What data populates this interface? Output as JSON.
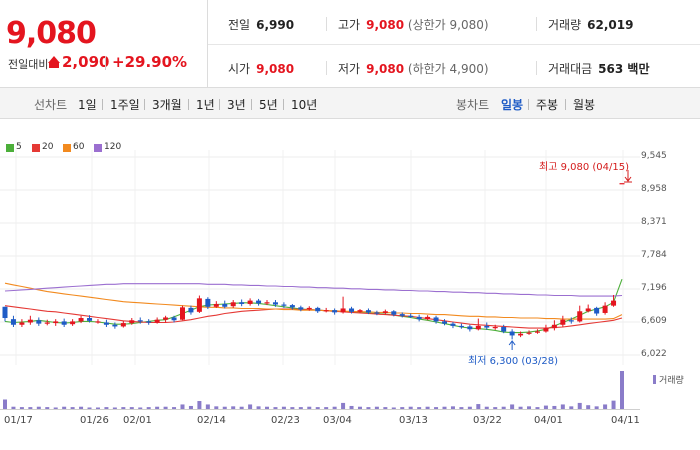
{
  "header": {
    "price": "9,080",
    "change_label": "전일대비",
    "change_value": "2,090",
    "change_pct": "+29.90%",
    "stats": {
      "prev_label": "전일",
      "prev_value": "6,990",
      "high_label": "고가",
      "high_value": "9,080",
      "upper_label": "(상한가 9,080)",
      "volume_label": "거래량",
      "volume_value": "62,019",
      "open_label": "시가",
      "open_value": "9,080",
      "low_label": "저가",
      "low_value": "9,080",
      "lower_label": "(하한가 4,900)",
      "amount_label": "거래대금",
      "amount_value": "563 백만"
    },
    "colors": {
      "up": "#e4151f",
      "down": "#1e5bc6"
    }
  },
  "tabs": {
    "line_label": "선차트",
    "periods": [
      "1일",
      "1주일",
      "3개월",
      "1년",
      "3년",
      "5년",
      "10년"
    ],
    "candle_label": "봉차트",
    "candle_periods": [
      "일봉",
      "주봉",
      "월봉"
    ],
    "active_candle": "일봉"
  },
  "chart_data": {
    "type": "candlestick",
    "legend": [
      {
        "name": "5",
        "color": "#4caf3a"
      },
      {
        "name": "20",
        "color": "#e53935"
      },
      {
        "name": "60",
        "color": "#f28a1f"
      },
      {
        "name": "120",
        "color": "#9b6fd0"
      }
    ],
    "y_ticks": [
      "9,545",
      "8,958",
      "8,371",
      "7,784",
      "7,196",
      "6,609",
      "6,022"
    ],
    "ylim": [
      6022,
      9545
    ],
    "x_ticks": [
      "01/17",
      "01/26",
      "02/01",
      "02/14",
      "02/23",
      "03/04",
      "03/13",
      "03/22",
      "04/01",
      "04/11"
    ],
    "high_annotation": "최고 9,080 (04/15)",
    "low_annotation": "최저 6,300 (03/28)",
    "volume_label": "거래량",
    "candles": [
      [
        6880,
        6680,
        6880,
        6620
      ],
      [
        6660,
        6560,
        6720,
        6520
      ],
      [
        6560,
        6600,
        6660,
        6520
      ],
      [
        6600,
        6650,
        6720,
        6560
      ],
      [
        6640,
        6580,
        6690,
        6540
      ],
      [
        6600,
        6600,
        6650,
        6550
      ],
      [
        6590,
        6620,
        6660,
        6540
      ],
      [
        6620,
        6560,
        6670,
        6520
      ],
      [
        6570,
        6620,
        6660,
        6540
      ],
      [
        6620,
        6680,
        6720,
        6590
      ],
      [
        6680,
        6630,
        6730,
        6600
      ],
      [
        6620,
        6620,
        6660,
        6580
      ],
      [
        6600,
        6560,
        6650,
        6520
      ],
      [
        6560,
        6530,
        6600,
        6490
      ],
      [
        6530,
        6590,
        6630,
        6510
      ],
      [
        6590,
        6640,
        6680,
        6560
      ],
      [
        6640,
        6620,
        6690,
        6580
      ],
      [
        6620,
        6600,
        6660,
        6560
      ],
      [
        6600,
        6650,
        6690,
        6580
      ],
      [
        6650,
        6690,
        6720,
        6600
      ],
      [
        6690,
        6640,
        6720,
        6600
      ],
      [
        6650,
        6870,
        6900,
        6640
      ],
      [
        6860,
        6780,
        6900,
        6740
      ],
      [
        6790,
        7030,
        7080,
        6770
      ],
      [
        7020,
        6880,
        7050,
        6840
      ],
      [
        6880,
        6930,
        6980,
        6860
      ],
      [
        6930,
        6880,
        6990,
        6850
      ],
      [
        6890,
        6960,
        7000,
        6860
      ],
      [
        6960,
        6930,
        7010,
        6890
      ],
      [
        6930,
        6990,
        7030,
        6900
      ],
      [
        6990,
        6940,
        7020,
        6900
      ],
      [
        6950,
        6960,
        7000,
        6910
      ],
      [
        6960,
        6920,
        7000,
        6880
      ],
      [
        6920,
        6900,
        6960,
        6860
      ],
      [
        6910,
        6870,
        6930,
        6830
      ],
      [
        6870,
        6830,
        6900,
        6800
      ],
      [
        6840,
        6860,
        6890,
        6810
      ],
      [
        6860,
        6800,
        6880,
        6770
      ],
      [
        6800,
        6820,
        6860,
        6780
      ],
      [
        6820,
        6780,
        6850,
        6740
      ],
      [
        6780,
        6850,
        7060,
        6760
      ],
      [
        6850,
        6790,
        6880,
        6760
      ],
      [
        6790,
        6820,
        6840,
        6770
      ],
      [
        6820,
        6780,
        6850,
        6750
      ],
      [
        6780,
        6760,
        6810,
        6730
      ],
      [
        6770,
        6800,
        6830,
        6740
      ],
      [
        6800,
        6740,
        6820,
        6710
      ],
      [
        6750,
        6720,
        6780,
        6690
      ],
      [
        6720,
        6700,
        6760,
        6680
      ],
      [
        6700,
        6660,
        6740,
        6620
      ],
      [
        6660,
        6700,
        6730,
        6640
      ],
      [
        6690,
        6620,
        6720,
        6580
      ],
      [
        6620,
        6580,
        6660,
        6550
      ],
      [
        6580,
        6540,
        6610,
        6500
      ],
      [
        6540,
        6530,
        6580,
        6490
      ],
      [
        6530,
        6480,
        6560,
        6440
      ],
      [
        6480,
        6540,
        6670,
        6460
      ],
      [
        6540,
        6510,
        6600,
        6470
      ],
      [
        6510,
        6520,
        6560,
        6470
      ],
      [
        6520,
        6440,
        6560,
        6410
      ],
      [
        6440,
        6370,
        6480,
        6300
      ],
      [
        6370,
        6400,
        6440,
        6340
      ],
      [
        6400,
        6420,
        6460,
        6380
      ],
      [
        6420,
        6440,
        6480,
        6400
      ],
      [
        6440,
        6500,
        6560,
        6420
      ],
      [
        6500,
        6560,
        6640,
        6460
      ],
      [
        6560,
        6650,
        6720,
        6520
      ],
      [
        6640,
        6620,
        6690,
        6580
      ],
      [
        6620,
        6800,
        6900,
        6600
      ],
      [
        6800,
        6850,
        6920,
        6780
      ],
      [
        6860,
        6760,
        6880,
        6720
      ],
      [
        6770,
        6900,
        6960,
        6740
      ],
      [
        6900,
        6990,
        7090,
        6880
      ],
      [
        9080,
        9080,
        9080,
        9080
      ]
    ],
    "volume": [
      [
        0,
        0.25
      ],
      [
        1,
        0.06
      ],
      [
        2,
        0.05
      ],
      [
        3,
        0.05
      ],
      [
        4,
        0.06
      ],
      [
        5,
        0.05
      ],
      [
        6,
        0.04
      ],
      [
        7,
        0.06
      ],
      [
        8,
        0.05
      ],
      [
        9,
        0.06
      ],
      [
        10,
        0.04
      ],
      [
        11,
        0.04
      ],
      [
        12,
        0.05
      ],
      [
        13,
        0.04
      ],
      [
        14,
        0.05
      ],
      [
        15,
        0.05
      ],
      [
        16,
        0.04
      ],
      [
        17,
        0.05
      ],
      [
        18,
        0.06
      ],
      [
        19,
        0.06
      ],
      [
        20,
        0.05
      ],
      [
        21,
        0.12
      ],
      [
        22,
        0.08
      ],
      [
        23,
        0.21
      ],
      [
        24,
        0.12
      ],
      [
        25,
        0.07
      ],
      [
        26,
        0.06
      ],
      [
        27,
        0.07
      ],
      [
        28,
        0.06
      ],
      [
        29,
        0.12
      ],
      [
        30,
        0.07
      ],
      [
        31,
        0.06
      ],
      [
        32,
        0.05
      ],
      [
        33,
        0.06
      ],
      [
        34,
        0.05
      ],
      [
        35,
        0.05
      ],
      [
        36,
        0.06
      ],
      [
        37,
        0.05
      ],
      [
        38,
        0.05
      ],
      [
        39,
        0.06
      ],
      [
        40,
        0.16
      ],
      [
        41,
        0.08
      ],
      [
        42,
        0.06
      ],
      [
        43,
        0.05
      ],
      [
        44,
        0.06
      ],
      [
        45,
        0.05
      ],
      [
        46,
        0.04
      ],
      [
        47,
        0.05
      ],
      [
        48,
        0.06
      ],
      [
        49,
        0.05
      ],
      [
        50,
        0.06
      ],
      [
        51,
        0.05
      ],
      [
        52,
        0.06
      ],
      [
        53,
        0.07
      ],
      [
        54,
        0.05
      ],
      [
        55,
        0.06
      ],
      [
        56,
        0.13
      ],
      [
        57,
        0.06
      ],
      [
        58,
        0.05
      ],
      [
        59,
        0.06
      ],
      [
        60,
        0.12
      ],
      [
        61,
        0.06
      ],
      [
        62,
        0.07
      ],
      [
        63,
        0.05
      ],
      [
        64,
        0.09
      ],
      [
        65,
        0.08
      ],
      [
        66,
        0.12
      ],
      [
        67,
        0.07
      ],
      [
        68,
        0.16
      ],
      [
        69,
        0.1
      ],
      [
        70,
        0.07
      ],
      [
        71,
        0.12
      ],
      [
        72,
        0.22
      ],
      [
        73,
        1.0
      ]
    ],
    "ma": {
      "5": [
        6620,
        6600,
        6610,
        6620,
        6640,
        6620,
        6600,
        6590,
        6600,
        6620,
        6620,
        6610,
        6590,
        6570,
        6570,
        6580,
        6600,
        6620,
        6640,
        6650,
        6700,
        6760,
        6820,
        6880,
        6910,
        6920,
        6930,
        6940,
        6950,
        6950,
        6940,
        6920,
        6900,
        6880,
        6860,
        6840,
        6830,
        6820,
        6810,
        6800,
        6800,
        6790,
        6780,
        6770,
        6760,
        6750,
        6730,
        6710,
        6690,
        6660,
        6640,
        6610,
        6580,
        6550,
        6520,
        6500,
        6490,
        6480,
        6460,
        6430,
        6420,
        6420,
        6430,
        6450,
        6480,
        6540,
        6600,
        6660,
        6730,
        6800,
        6840,
        6880,
        6960,
        7370
      ],
      "20": [
        6900,
        6880,
        6860,
        6840,
        6820,
        6800,
        6790,
        6770,
        6750,
        6730,
        6710,
        6690,
        6670,
        6650,
        6630,
        6620,
        6610,
        6600,
        6600,
        6600,
        6610,
        6630,
        6650,
        6680,
        6710,
        6730,
        6760,
        6780,
        6800,
        6810,
        6820,
        6830,
        6840,
        6840,
        6840,
        6830,
        6830,
        6820,
        6810,
        6800,
        6790,
        6780,
        6770,
        6760,
        6750,
        6740,
        6730,
        6720,
        6710,
        6690,
        6670,
        6650,
        6630,
        6610,
        6590,
        6570,
        6560,
        6550,
        6540,
        6530,
        6520,
        6510,
        6500,
        6500,
        6500,
        6510,
        6520,
        6540,
        6560,
        6580,
        6600,
        6620,
        6640,
        6680
      ],
      "60": [
        7300,
        7270,
        7240,
        7210,
        7180,
        7150,
        7130,
        7110,
        7090,
        7070,
        7050,
        7030,
        7010,
        6990,
        6970,
        6960,
        6950,
        6940,
        6930,
        6920,
        6910,
        6900,
        6890,
        6880,
        6870,
        6870,
        6860,
        6860,
        6850,
        6850,
        6850,
        6840,
        6840,
        6830,
        6830,
        6820,
        6820,
        6820,
        6810,
        6810,
        6800,
        6800,
        6790,
        6790,
        6780,
        6780,
        6770,
        6770,
        6760,
        6760,
        6750,
        6740,
        6740,
        6730,
        6720,
        6710,
        6710,
        6700,
        6700,
        6690,
        6690,
        6680,
        6680,
        6680,
        6670,
        6670,
        6660,
        6660,
        6660,
        6660,
        6660,
        6660,
        6670,
        6740
      ],
      "120": [
        7160,
        7170,
        7180,
        7190,
        7200,
        7210,
        7220,
        7230,
        7240,
        7250,
        7260,
        7270,
        7280,
        7280,
        7290,
        7290,
        7290,
        7290,
        7290,
        7290,
        7290,
        7290,
        7290,
        7290,
        7280,
        7280,
        7280,
        7270,
        7270,
        7260,
        7260,
        7250,
        7250,
        7240,
        7240,
        7230,
        7230,
        7220,
        7220,
        7210,
        7210,
        7200,
        7200,
        7190,
        7190,
        7180,
        7180,
        7170,
        7170,
        7160,
        7160,
        7150,
        7150,
        7140,
        7140,
        7130,
        7130,
        7120,
        7120,
        7110,
        7110,
        7100,
        7100,
        7090,
        7090,
        7080,
        7080,
        7080,
        7070,
        7070,
        7070,
        7070,
        7070,
        7080
      ]
    }
  }
}
